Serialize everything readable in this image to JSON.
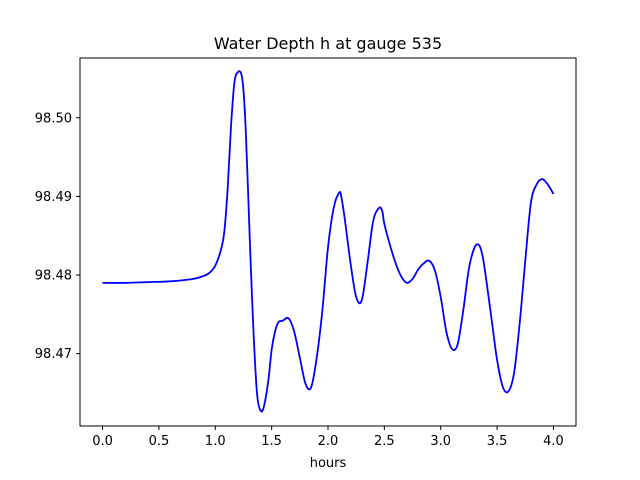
{
  "chart_data": {
    "type": "line",
    "title": "Water Depth h at gauge 535",
    "xlabel": "hours",
    "ylabel": "",
    "xlim": [
      -0.2,
      4.2
    ],
    "ylim": [
      98.4608,
      98.5076
    ],
    "x_ticks": [
      {
        "value": 0.0,
        "label": "0.0"
      },
      {
        "value": 0.5,
        "label": "0.5"
      },
      {
        "value": 1.0,
        "label": "1.0"
      },
      {
        "value": 1.5,
        "label": "1.5"
      },
      {
        "value": 2.0,
        "label": "2.0"
      },
      {
        "value": 2.5,
        "label": "2.5"
      },
      {
        "value": 3.0,
        "label": "3.0"
      },
      {
        "value": 3.5,
        "label": "3.5"
      },
      {
        "value": 4.0,
        "label": "4.0"
      }
    ],
    "y_ticks": [
      {
        "value": 98.47,
        "label": "98.47"
      },
      {
        "value": 98.48,
        "label": "98.48"
      },
      {
        "value": 98.49,
        "label": "98.49"
      },
      {
        "value": 98.5,
        "label": "98.50"
      }
    ],
    "grid": false,
    "series": [
      {
        "color": "#0000ff",
        "x": [
          0.0,
          0.2,
          0.4,
          0.6,
          0.8,
          0.9,
          0.95,
          1.0,
          1.05,
          1.08,
          1.11,
          1.14,
          1.17,
          1.2,
          1.23,
          1.25,
          1.27,
          1.29,
          1.31,
          1.34,
          1.37,
          1.4,
          1.43,
          1.47,
          1.5,
          1.53,
          1.56,
          1.6,
          1.65,
          1.7,
          1.75,
          1.8,
          1.85,
          1.9,
          1.95,
          2.0,
          2.05,
          2.1,
          2.12,
          2.15,
          2.2,
          2.25,
          2.3,
          2.35,
          2.4,
          2.45,
          2.48,
          2.5,
          2.55,
          2.6,
          2.65,
          2.7,
          2.75,
          2.8,
          2.85,
          2.9,
          2.95,
          3.0,
          3.05,
          3.1,
          3.15,
          3.2,
          3.25,
          3.3,
          3.34,
          3.37,
          3.4,
          3.45,
          3.5,
          3.55,
          3.6,
          3.65,
          3.7,
          3.75,
          3.8,
          3.85,
          3.9,
          3.95,
          4.0
        ],
        "y": [
          98.479,
          98.479,
          98.4791,
          98.4792,
          98.4795,
          98.4799,
          98.4803,
          98.4812,
          98.4832,
          98.4855,
          98.491,
          98.499,
          98.5045,
          98.5058,
          98.5056,
          98.5035,
          98.4985,
          98.491,
          98.483,
          98.4725,
          98.465,
          98.4628,
          98.4632,
          98.4665,
          98.4705,
          98.4728,
          98.474,
          98.4742,
          98.4745,
          98.4728,
          98.4695,
          98.4662,
          98.4657,
          98.4695,
          98.4755,
          98.4835,
          98.4885,
          98.4905,
          98.4898,
          98.487,
          98.4815,
          98.4772,
          98.4768,
          98.4815,
          98.4868,
          98.4885,
          98.4882,
          98.4865,
          98.4838,
          98.4815,
          98.4798,
          98.479,
          98.4795,
          98.4807,
          98.4815,
          98.4818,
          98.4805,
          98.4772,
          98.4728,
          98.4706,
          98.4712,
          98.4755,
          98.4808,
          98.4835,
          98.4838,
          98.4825,
          98.4798,
          98.4745,
          98.4692,
          98.4658,
          98.4652,
          98.4675,
          98.4738,
          98.4818,
          98.4892,
          98.4915,
          98.4922,
          98.4915,
          98.4903
        ]
      }
    ]
  }
}
